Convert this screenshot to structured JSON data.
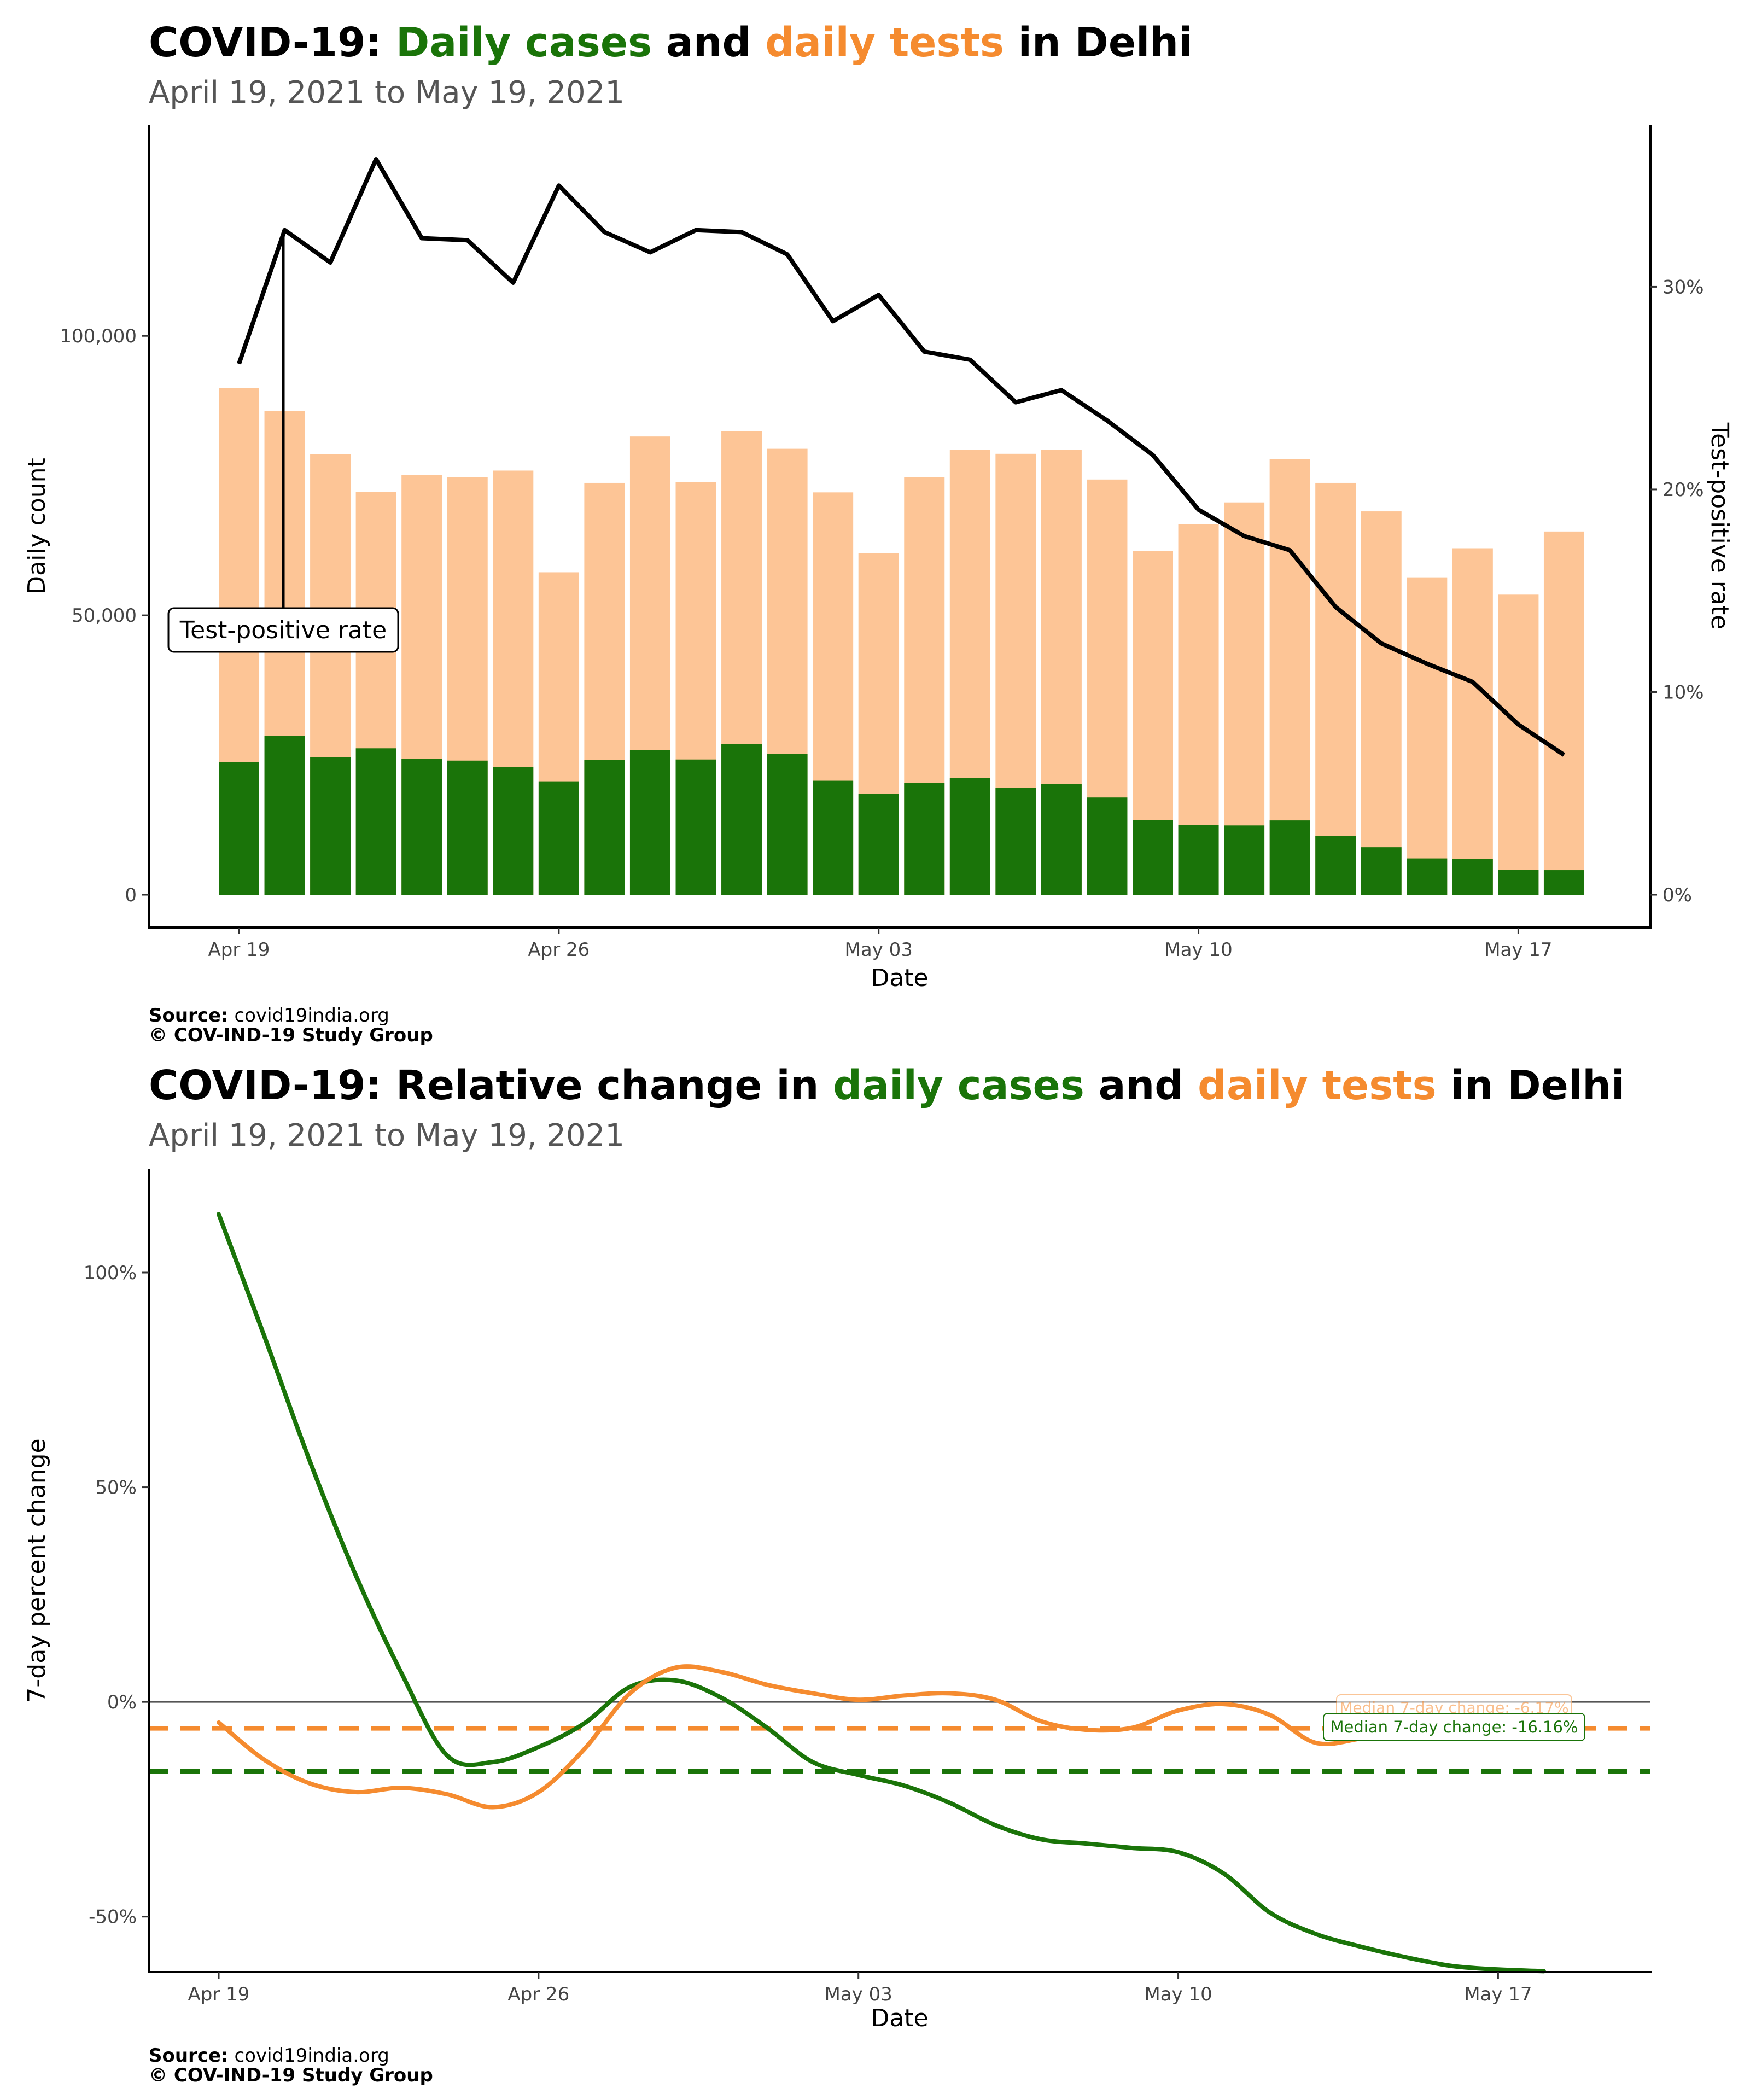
{
  "colors": {
    "cases": "#1a7409",
    "tests": "#fdc596",
    "tests_line": "#f58b2f",
    "tpr_line": "#000000",
    "axis": "#000000",
    "zero_line": "#555555"
  },
  "chart_data": [
    {
      "type": "bar",
      "title_parts": [
        {
          "text": "COVID-19: ",
          "color": "#000000"
        },
        {
          "text": "Daily cases",
          "color": "#1a7409"
        },
        {
          "text": " and ",
          "color": "#000000"
        },
        {
          "text": "daily tests",
          "color": "#f58b2f"
        },
        {
          "text": " in Delhi",
          "color": "#000000"
        }
      ],
      "subtitle": "April 19, 2021 to May 19, 2021",
      "xlabel": "Date",
      "ylabel": "Daily count",
      "y2label": "Test-positive rate",
      "x_ticks": [
        "Apr 19",
        "Apr 26",
        "May 03",
        "May 10",
        "May 17"
      ],
      "y_ticks": [
        "0",
        "50,000",
        "100,000"
      ],
      "y2_ticks": [
        "0%",
        "10%",
        "20%",
        "30%"
      ],
      "ylim": [
        0,
        137800
      ],
      "y2lim": [
        0,
        38
      ],
      "dates": [
        "Apr 19",
        "Apr 20",
        "Apr 21",
        "Apr 22",
        "Apr 23",
        "Apr 24",
        "Apr 25",
        "Apr 26",
        "Apr 27",
        "Apr 28",
        "Apr 29",
        "Apr 30",
        "May 01",
        "May 02",
        "May 03",
        "May 04",
        "May 05",
        "May 06",
        "May 07",
        "May 08",
        "May 09",
        "May 10",
        "May 11",
        "May 12",
        "May 13",
        "May 14",
        "May 15",
        "May 16",
        "May 17",
        "May 18"
      ],
      "series": [
        {
          "name": "Daily tests",
          "values": [
            90700,
            86600,
            78800,
            72100,
            75100,
            74700,
            75900,
            57700,
            73700,
            82000,
            73800,
            82900,
            79800,
            72000,
            61100,
            74700,
            79600,
            78900,
            79600,
            74300,
            61500,
            66300,
            70200,
            78000,
            73700,
            68600,
            56800,
            62000,
            53700,
            65000
          ]
        },
        {
          "name": "Daily cases",
          "values": [
            23700,
            28400,
            24600,
            26200,
            24300,
            24000,
            22900,
            20200,
            24100,
            25900,
            24200,
            27000,
            25200,
            20400,
            18100,
            20000,
            20900,
            19100,
            19800,
            17400,
            13400,
            12500,
            12400,
            13300,
            10500,
            8500,
            6500,
            6400,
            4500,
            4400
          ]
        },
        {
          "name": "Test-positive rate",
          "values": [
            26.2,
            32.8,
            31.2,
            36.3,
            32.4,
            32.3,
            30.2,
            35.0,
            32.7,
            31.7,
            32.8,
            32.7,
            31.6,
            28.3,
            29.6,
            26.8,
            26.4,
            24.3,
            24.9,
            23.4,
            21.7,
            19.0,
            17.7,
            17.0,
            14.2,
            12.4,
            11.4,
            10.5,
            8.4,
            6.9
          ]
        }
      ],
      "annotation": "Test-positive rate"
    },
    {
      "type": "line",
      "title_parts": [
        {
          "text": "COVID-19: Relative change in ",
          "color": "#000000"
        },
        {
          "text": "daily cases",
          "color": "#1a7409"
        },
        {
          "text": " and ",
          "color": "#000000"
        },
        {
          "text": "daily tests",
          "color": "#f58b2f"
        },
        {
          "text": " in Delhi",
          "color": "#000000"
        }
      ],
      "subtitle": "April 19, 2021 to May 19, 2021",
      "xlabel": "Date",
      "ylabel": "7-day percent change",
      "x_ticks": [
        "Apr 19",
        "Apr 26",
        "May 03",
        "May 10",
        "May 17"
      ],
      "y_ticks": [
        "-50%",
        "0%",
        "50%",
        "100%"
      ],
      "ylim": [
        -62.9,
        124.2
      ],
      "x": [
        "Apr 19",
        "Apr 20",
        "Apr 21",
        "Apr 22",
        "Apr 23",
        "Apr 24",
        "Apr 25",
        "Apr 26",
        "Apr 27",
        "Apr 28",
        "Apr 29",
        "Apr 30",
        "May 01",
        "May 02",
        "May 03",
        "May 04",
        "May 05",
        "May 06",
        "May 07",
        "May 08",
        "May 09",
        "May 10",
        "May 11",
        "May 12",
        "May 13",
        "May 14",
        "May 15",
        "May 16",
        "May 17",
        "May 18"
      ],
      "series": [
        {
          "name": "Daily cases",
          "values": [
            113.6,
            85.1,
            55.9,
            29.5,
            6.7,
            -12.5,
            -14.0,
            -10.5,
            -5.0,
            3.5,
            5.0,
            1.0,
            -6.0,
            -14.0,
            -17.0,
            -19.5,
            -23.5,
            -28.7,
            -32.0,
            -33.0,
            -34.0,
            -35.0,
            -40.0,
            -49.0,
            -54.0,
            -57.0,
            -59.5,
            -61.5,
            -62.3,
            -62.7
          ]
        },
        {
          "name": "Daily tests",
          "values": [
            -4.8,
            -13.5,
            -19.0,
            -21.0,
            -20.0,
            -21.5,
            -24.5,
            -21.0,
            -11.0,
            2.0,
            8.0,
            7.0,
            4.0,
            2.0,
            0.5,
            1.5,
            2.0,
            0.5,
            -4.5,
            -6.5,
            -6.0,
            -2.0,
            -0.5,
            -3.0,
            -9.5,
            -8.5,
            -6.5,
            -7.0,
            -6.0,
            -5.5
          ]
        }
      ],
      "medians": [
        {
          "name": "Daily tests",
          "value": -6.17,
          "label": "Median 7-day change: -6.17%"
        },
        {
          "name": "Daily cases",
          "value": -16.16,
          "label": "Median 7-day change: -16.16%"
        }
      ]
    }
  ],
  "captions": {
    "source_label": "Source:",
    "source_value": " covid19india.org",
    "copyright": "© COV-IND-19 Study Group"
  }
}
